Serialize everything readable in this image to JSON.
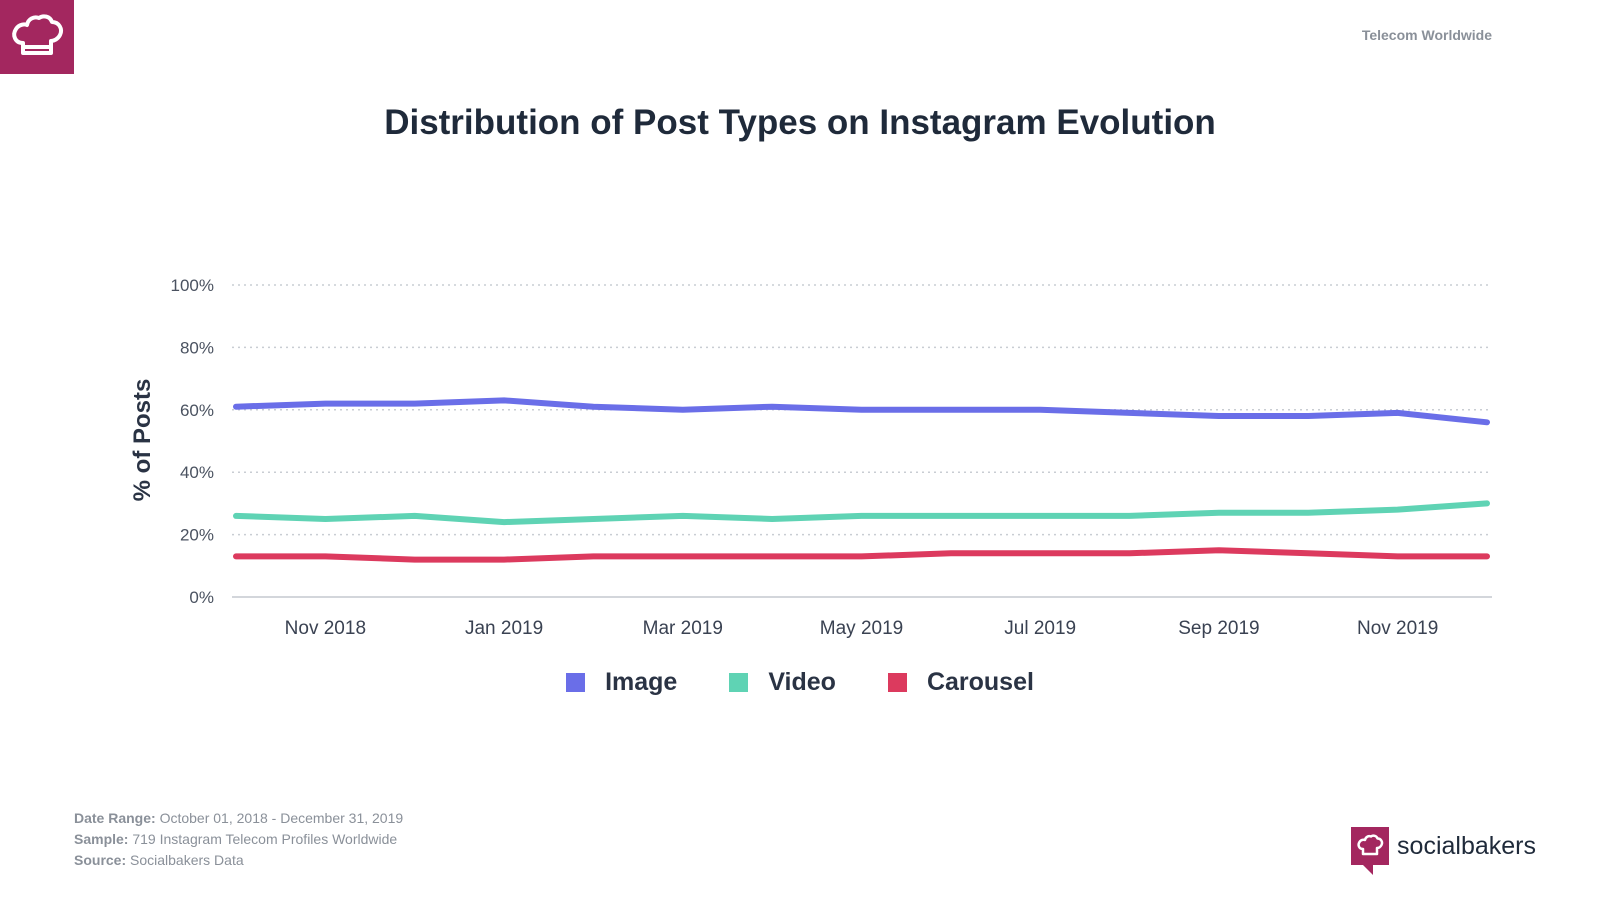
{
  "header": {
    "label": "Telecom Worldwide"
  },
  "chart_data": {
    "type": "line",
    "title": "Distribution of Post Types on Instagram Evolution",
    "ylabel": "% of Posts",
    "xlabel": "",
    "ylim": [
      0,
      100
    ],
    "yticks": [
      "0%",
      "20%",
      "40%",
      "60%",
      "80%",
      "100%"
    ],
    "x": [
      "Oct 2018",
      "Nov 2018",
      "Dec 2018",
      "Jan 2019",
      "Feb 2019",
      "Mar 2019",
      "Apr 2019",
      "May 2019",
      "Jun 2019",
      "Jul 2019",
      "Aug 2019",
      "Sep 2019",
      "Oct 2019",
      "Nov 2019",
      "Dec 2019"
    ],
    "xtick_labels": [
      "Nov 2018",
      "Jan 2019",
      "Mar 2019",
      "May 2019",
      "Jul 2019",
      "Sep 2019",
      "Nov 2019"
    ],
    "grid": true,
    "legend": "bottom",
    "series": [
      {
        "name": "Image",
        "color": "#6a6ee8",
        "values": [
          61,
          62,
          62,
          63,
          61,
          60,
          61,
          60,
          60,
          60,
          59,
          58,
          58,
          59,
          56
        ]
      },
      {
        "name": "Video",
        "color": "#5fd3b4",
        "values": [
          26,
          25,
          26,
          24,
          25,
          26,
          25,
          26,
          26,
          26,
          26,
          27,
          27,
          28,
          30
        ]
      },
      {
        "name": "Carousel",
        "color": "#dc3a5e",
        "values": [
          13,
          13,
          12,
          12,
          13,
          13,
          13,
          13,
          14,
          14,
          14,
          15,
          14,
          13,
          13
        ]
      }
    ]
  },
  "legend": {
    "items": [
      {
        "label": "Image",
        "color": "#6a6ee8"
      },
      {
        "label": "Video",
        "color": "#5fd3b4"
      },
      {
        "label": "Carousel",
        "color": "#dc3a5e"
      }
    ]
  },
  "footer": {
    "date_range_label": "Date Range:",
    "date_range_value": "October 01, 2018 - December 31, 2019",
    "sample_label": "Sample:",
    "sample_value": "719 Instagram Telecom Profiles Worldwide",
    "source_label": "Source:",
    "source_value": "Socialbakers Data"
  },
  "brand": {
    "name": "socialbakers",
    "color": "#a3275f"
  }
}
